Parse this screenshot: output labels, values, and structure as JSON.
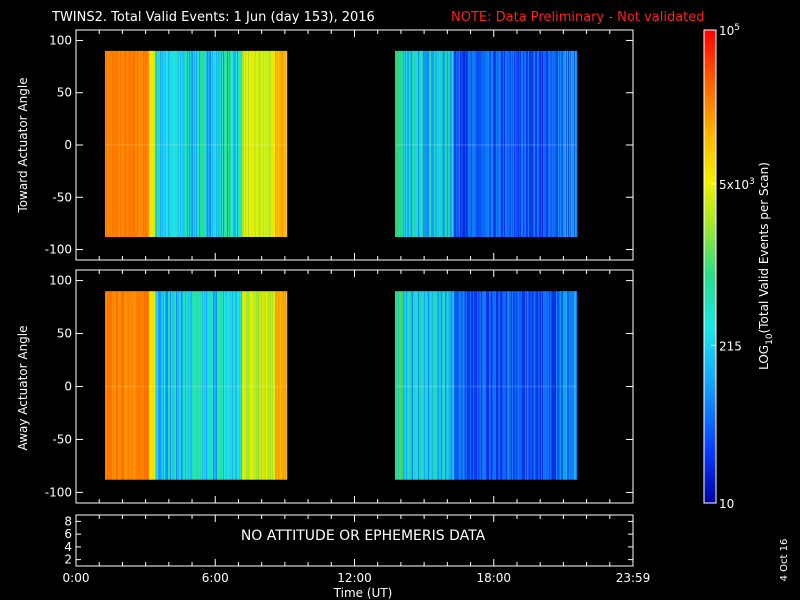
{
  "title": "TWINS2. Total Valid Events:  1 Jun (day 153), 2016",
  "note": "NOTE: Data Preliminary - Not validated",
  "side_date": "4 Oct 16",
  "colors": {
    "background": "#000000",
    "axes": "#ffffff",
    "note": "#ff2020"
  },
  "chart_data": [
    {
      "type": "heatmap",
      "ylabel": "Toward Actuator Angle",
      "ylim": [
        -110,
        110
      ],
      "yticks": [
        "100",
        "50",
        "0",
        "-50",
        "-100"
      ],
      "xlim_hours": [
        0,
        24
      ],
      "blocks": [
        {
          "start": "1:15",
          "end": "9:05",
          "angle_range": [
            -88,
            90
          ]
        },
        {
          "start": "13:45",
          "end": "21:35",
          "angle_range": [
            -88,
            90
          ]
        }
      ],
      "grid": false
    },
    {
      "type": "heatmap",
      "ylabel": "Away Actuator Angle",
      "ylim": [
        -110,
        110
      ],
      "yticks": [
        "100",
        "50",
        "0",
        "-50",
        "-100"
      ],
      "xlim_hours": [
        0,
        24
      ],
      "blocks": [
        {
          "start": "1:15",
          "end": "9:05",
          "angle_range": [
            -88,
            90
          ]
        },
        {
          "start": "13:45",
          "end": "21:35",
          "angle_range": [
            -88,
            90
          ]
        }
      ],
      "grid": false
    },
    {
      "type": "line",
      "ylim": [
        1,
        9
      ],
      "yticks": [
        "8",
        "6",
        "4",
        "2"
      ],
      "message": "NO ATTITUDE OR EPHEMERIS DATA",
      "xlabel": "Time (UT)",
      "xticks": [
        "0:00",
        "6:00",
        "12:00",
        "18:00",
        "23:59"
      ]
    }
  ],
  "colorbar": {
    "label": "LOG10(Total Valid Events per Scan)",
    "scale": "log",
    "range": [
      10,
      100000
    ],
    "ticks": [
      {
        "value": 100000,
        "label": "10^5"
      },
      {
        "value": 5000,
        "label": "5x10^3"
      },
      {
        "value": 215,
        "label": "215"
      },
      {
        "value": 10,
        "label": "10"
      }
    ],
    "colormap": [
      "#0000a0",
      "#0a3cff",
      "#14a0ff",
      "#20e6e6",
      "#2adc8c",
      "#9ae632",
      "#f0f000",
      "#ffb400",
      "#ff5a00",
      "#ff0000"
    ]
  }
}
